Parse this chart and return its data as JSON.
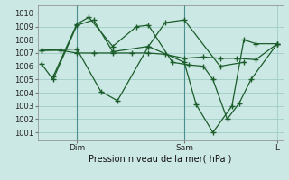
{
  "title": "Pression niveau de la mer( hPa )",
  "bg_color": "#cce8e4",
  "grid_color": "#9ecdc6",
  "line_color": "#1a5c2a",
  "ylim": [
    1000.4,
    1010.6
  ],
  "yticks": [
    1001,
    1002,
    1003,
    1004,
    1005,
    1006,
    1007,
    1008,
    1009,
    1010
  ],
  "xlim": [
    -0.15,
    10.15
  ],
  "xtick_positions": [
    1.5,
    6.0,
    9.9
  ],
  "xtick_labels": [
    "Dim",
    "Sam",
    "L"
  ],
  "vline_positions": [
    1.5,
    6.0
  ],
  "series": [
    {
      "x": [
        0.0,
        0.8,
        1.5,
        2.2,
        3.0,
        3.8,
        4.5,
        5.2,
        6.0,
        6.8,
        7.5,
        8.2,
        9.0,
        9.9
      ],
      "y": [
        1007.2,
        1007.2,
        1007.0,
        1007.0,
        1007.0,
        1007.0,
        1007.0,
        1006.9,
        1006.6,
        1006.7,
        1006.6,
        1006.6,
        1006.5,
        1007.7
      ]
    },
    {
      "x": [
        0.0,
        0.5,
        1.5,
        2.2,
        3.0,
        4.5,
        5.2,
        6.0,
        7.5,
        8.5
      ],
      "y": [
        1006.2,
        1005.0,
        1009.1,
        1009.5,
        1007.1,
        1007.5,
        1009.3,
        1009.5,
        1006.0,
        1006.3
      ]
    },
    {
      "x": [
        0.0,
        1.5,
        2.5,
        3.2,
        4.5,
        6.0,
        6.5,
        7.2,
        8.0,
        8.5,
        9.0,
        9.9
      ],
      "y": [
        1007.2,
        1007.3,
        1004.1,
        1003.4,
        1007.5,
        1006.3,
        1003.1,
        1001.0,
        1003.0,
        1008.0,
        1007.7,
        1007.7
      ]
    },
    {
      "x": [
        0.5,
        1.5,
        2.0,
        3.0,
        4.0,
        4.5,
        5.5,
        6.2,
        6.8,
        7.2,
        7.8,
        8.3,
        8.8,
        9.9
      ],
      "y": [
        1005.2,
        1009.2,
        1009.7,
        1007.5,
        1009.0,
        1009.1,
        1006.3,
        1006.1,
        1006.0,
        1005.0,
        1002.0,
        1003.2,
        1005.0,
        1007.7
      ]
    }
  ]
}
